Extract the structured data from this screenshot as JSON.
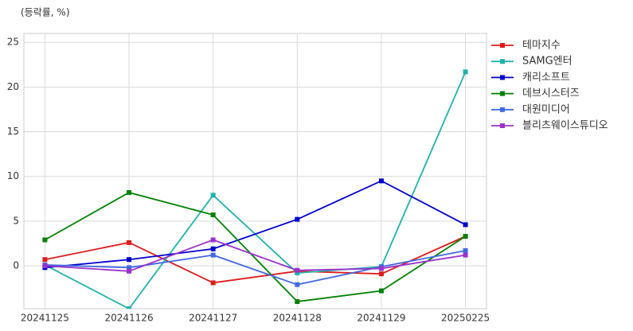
{
  "chart_data": {
    "type": "line",
    "y_label": "(등락률, %)",
    "categories": [
      "20241125",
      "20241126",
      "20241127",
      "20241128",
      "20241129",
      "20250225"
    ],
    "series": [
      {
        "name": "테마지수",
        "color": "#dd1c1c",
        "values": [
          0.7,
          2.6,
          -1.9,
          -0.6,
          -0.9,
          3.3
        ]
      },
      {
        "name": "SAMG엔터",
        "color": "#20b2aa",
        "values": [
          0.1,
          -4.8,
          7.9,
          -0.8,
          -0.1,
          21.7
        ]
      },
      {
        "name": "캐리소프트",
        "color": "#0000cd",
        "values": [
          -0.2,
          0.7,
          1.9,
          5.2,
          9.5,
          4.6
        ]
      },
      {
        "name": "데브시스터즈",
        "color": "#008000",
        "values": [
          2.9,
          8.2,
          5.7,
          -4.0,
          -2.8,
          3.3
        ]
      },
      {
        "name": "대원미디어",
        "color": "#4169e1",
        "values": [
          0.1,
          -0.2,
          1.2,
          -2.1,
          -0.1,
          1.7
        ]
      },
      {
        "name": "블리츠웨이스튜디오",
        "color": "#9932cc",
        "values": [
          0.0,
          -0.6,
          2.9,
          -0.5,
          -0.3,
          1.2
        ]
      }
    ],
    "ylim": [
      -4.8,
      26
    ],
    "yticks": [
      0,
      5,
      10,
      15,
      20,
      25
    ],
    "grid": true,
    "legend": "outside-right"
  }
}
